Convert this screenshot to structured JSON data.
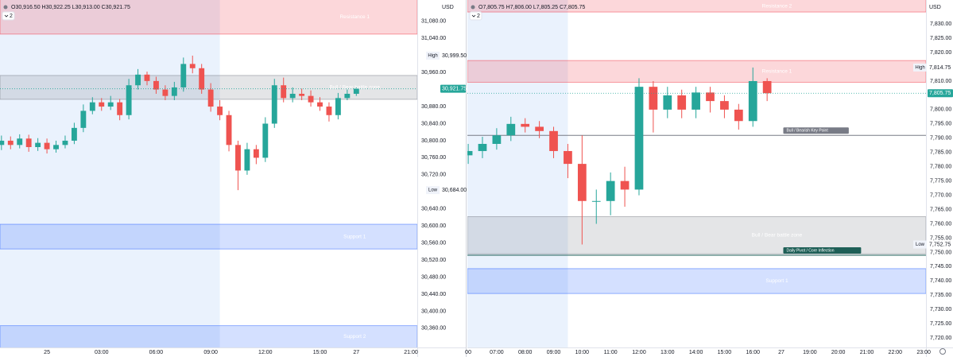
{
  "chart_data": [
    {
      "type": "candlestick",
      "header": "O30,916.50 H30,922.25 L30,913.00 C30,921.75",
      "interval_menu": "2",
      "currency": "USD",
      "up_color": "#26a69a",
      "down_color": "#ef5350",
      "shade_color": "#eaf2fd",
      "x": [
        -2.5,
        -2,
        -1.5,
        -1,
        -0.5,
        0,
        0.5,
        1,
        1.5,
        2,
        2.5,
        3,
        3.5,
        4,
        4.5,
        5,
        5.5,
        6,
        6.5,
        7,
        7.5,
        8,
        8.5,
        9,
        9.5,
        10,
        10.5,
        11,
        11.5,
        12,
        12.5,
        13,
        13.5,
        14,
        14.5,
        15,
        15.5,
        16,
        16.5,
        17
      ],
      "open": [
        30790,
        30800,
        30790,
        30805,
        30785,
        30795,
        30780,
        30790,
        30800,
        30830,
        30870,
        30890,
        30880,
        30890,
        30860,
        30930,
        30955,
        30940,
        30920,
        30905,
        30925,
        30980,
        30970,
        30920,
        30880,
        30860,
        30790,
        30730,
        30780,
        30760,
        30840,
        30930,
        30900,
        30910,
        30905,
        30890,
        30880,
        30860,
        30900,
        30910
      ],
      "high": [
        30812,
        30810,
        30815,
        30814,
        30806,
        30805,
        30800,
        30812,
        30842,
        30885,
        30902,
        30900,
        30905,
        30898,
        30945,
        30968,
        30962,
        30950,
        30930,
        30938,
        30995,
        30999.5,
        30980,
        30935,
        30895,
        30870,
        30800,
        30795,
        30790,
        30855,
        30945,
        30948,
        30925,
        30922,
        30918,
        30902,
        30890,
        30912,
        30920,
        30925
      ],
      "low": [
        30778,
        30780,
        30782,
        30774,
        30776,
        30770,
        30772,
        30782,
        30792,
        30820,
        30862,
        30870,
        30872,
        30848,
        30850,
        30920,
        30930,
        30910,
        30895,
        30895,
        30915,
        30958,
        30910,
        30868,
        30848,
        30775,
        30684,
        30720,
        30745,
        30750,
        30830,
        30890,
        30890,
        30895,
        30880,
        30870,
        30845,
        30850,
        30895,
        30905
      ],
      "close": [
        30800,
        30790,
        30805,
        30785,
        30795,
        30780,
        30790,
        30800,
        30830,
        30870,
        30890,
        30880,
        30890,
        30860,
        30930,
        30955,
        30940,
        30920,
        30905,
        30925,
        30980,
        30970,
        30920,
        30880,
        30860,
        30790,
        30730,
        30780,
        30760,
        30840,
        30930,
        30900,
        30910,
        30905,
        30890,
        30880,
        30860,
        30900,
        30910,
        30922
      ],
      "xlim": [
        -2.58,
        20.35
      ],
      "xticks": [
        {
          "value": 0,
          "label": "25"
        },
        {
          "value": 3,
          "label": "03:00"
        },
        {
          "value": 6,
          "label": "06:00"
        },
        {
          "value": 9,
          "label": "09:00"
        },
        {
          "value": 12,
          "label": "12:00"
        },
        {
          "value": 15,
          "label": "15:00"
        },
        {
          "value": 17,
          "label": "27"
        },
        {
          "value": 20,
          "label": "21:00"
        }
      ],
      "ylim": [
        30315,
        31130
      ],
      "yticks": [
        {
          "value": 30360,
          "label": "30,360.00"
        },
        {
          "value": 30400,
          "label": "30,400.00"
        },
        {
          "value": 30440,
          "label": "30,440.00"
        },
        {
          "value": 30480,
          "label": "30,480.00"
        },
        {
          "value": 30520,
          "label": "30,520.00"
        },
        {
          "value": 30560,
          "label": "30,560.00"
        },
        {
          "value": 30600,
          "label": "30,600.00"
        },
        {
          "value": 30640,
          "label": "30,640.00"
        },
        {
          "value": 30720,
          "label": "30,720.00"
        },
        {
          "value": 30760,
          "label": "30,760.00"
        },
        {
          "value": 30800,
          "label": "30,800.00"
        },
        {
          "value": 30840,
          "label": "30,840.00"
        },
        {
          "value": 30880,
          "label": "30,880.00"
        },
        {
          "value": 30960,
          "label": "30,960.00"
        },
        {
          "value": 31040,
          "label": "31,040.00"
        },
        {
          "value": 31080,
          "label": "31,080.00"
        }
      ],
      "session_shade_end": 9.5,
      "zones": [
        {
          "label": "Resistance 1",
          "from": 31050,
          "to": 31140,
          "color": "#f23645"
        },
        {
          "label": "Bull / Bear battle zone",
          "from": 30897,
          "to": 30953,
          "color": "#787b86"
        },
        {
          "label": "Support 1",
          "from": 30546,
          "to": 30604,
          "color": "#2962ff"
        },
        {
          "label": "Support 2",
          "from": 30300,
          "to": 30366,
          "color": "#2962ff"
        }
      ],
      "levels": [],
      "markers": [
        {
          "label": "High",
          "value": {
            "value": 30999.5,
            "label": "30,999.50"
          }
        },
        {
          "label": "Low",
          "value": {
            "value": 30684,
            "label": "30,684.00"
          }
        }
      ],
      "last": {
        "value": 30921.75,
        "label": "30,921.75"
      }
    },
    {
      "type": "candlestick",
      "header": "O7,805.75 H7,806.00 L7,805.25 C7,805.75",
      "interval_menu": "2",
      "currency": "USD",
      "up_color": "#26a69a",
      "down_color": "#ef5350",
      "shade_color": "#eaf2fd",
      "x": [
        6,
        6.5,
        7,
        7.5,
        8,
        8.5,
        9,
        9.5,
        10,
        10.5,
        11,
        11.5,
        12,
        12.5,
        13,
        13.5,
        14,
        14.5,
        15,
        15.5,
        16,
        16.5
      ],
      "open": [
        7784,
        7785.5,
        7788,
        7791,
        7795,
        7794,
        7792.5,
        7785.5,
        7781,
        7768,
        7768,
        7775,
        7772,
        7808,
        7800,
        7805,
        7800,
        7806,
        7803,
        7800,
        7796,
        7810
      ],
      "high": [
        7788,
        7790.5,
        7793.5,
        7797.5,
        7797,
        7796,
        7794,
        7788,
        7791,
        7772,
        7778,
        7780,
        7811,
        7810,
        7808,
        7807,
        7808,
        7808,
        7805,
        7802,
        7814.75,
        7811
      ],
      "low": [
        7781,
        7783,
        7786,
        7789,
        7792,
        7790,
        7783,
        7776,
        7752.75,
        7760,
        7763,
        7766,
        7770,
        7792,
        7797,
        7797,
        7797,
        7799,
        7797,
        7793,
        7794,
        7803
      ],
      "close": [
        7785.5,
        7788,
        7791,
        7795,
        7794,
        7792.5,
        7785.5,
        7781,
        7768,
        7768,
        7775,
        7772,
        7808,
        7800,
        7805,
        7800,
        7806,
        7803,
        7800,
        7796,
        7810,
        7805.75
      ],
      "xlim": [
        5.97,
        22.08
      ],
      "xticks": [
        {
          "value": 6,
          "label": "00"
        },
        {
          "value": 7,
          "label": "07:00"
        },
        {
          "value": 8,
          "label": "08:00"
        },
        {
          "value": 9,
          "label": "09:00"
        },
        {
          "value": 10,
          "label": "10:00"
        },
        {
          "value": 11,
          "label": "11:00"
        },
        {
          "value": 12,
          "label": "12:00"
        },
        {
          "value": 13,
          "label": "13:00"
        },
        {
          "value": 14,
          "label": "14:00"
        },
        {
          "value": 15,
          "label": "15:00"
        },
        {
          "value": 16,
          "label": "16:00"
        },
        {
          "value": 17,
          "label": "27"
        },
        {
          "value": 18,
          "label": "19:00"
        },
        {
          "value": 19,
          "label": "20:00"
        },
        {
          "value": 20,
          "label": "21:00"
        },
        {
          "value": 21,
          "label": "22:00"
        },
        {
          "value": 22,
          "label": "23:00"
        }
      ],
      "ylim": [
        7716.7,
        7838.4
      ],
      "yticks": [
        {
          "value": 7720,
          "label": "7,720.00"
        },
        {
          "value": 7725,
          "label": "7,725.00"
        },
        {
          "value": 7730,
          "label": "7,730.00"
        },
        {
          "value": 7735,
          "label": "7,735.00"
        },
        {
          "value": 7740,
          "label": "7,740.00"
        },
        {
          "value": 7745,
          "label": "7,745.00"
        },
        {
          "value": 7750,
          "label": "7,750.00"
        },
        {
          "value": 7755,
          "label": "7,755.00"
        },
        {
          "value": 7760,
          "label": "7,760.00"
        },
        {
          "value": 7765,
          "label": "7,765.00"
        },
        {
          "value": 7770,
          "label": "7,770.00"
        },
        {
          "value": 7775,
          "label": "7,775.00"
        },
        {
          "value": 7780,
          "label": "7,780.00"
        },
        {
          "value": 7785,
          "label": "7,785.00"
        },
        {
          "value": 7790,
          "label": "7,790.00"
        },
        {
          "value": 7795,
          "label": "7,795.00"
        },
        {
          "value": 7800,
          "label": "7,800.00"
        },
        {
          "value": 7810,
          "label": "7,810.00"
        },
        {
          "value": 7820,
          "label": "7,820.00"
        },
        {
          "value": 7825,
          "label": "7,825.00"
        },
        {
          "value": 7830,
          "label": "7,830.00"
        }
      ],
      "session_shade_end": 9.5,
      "zones": [
        {
          "label": "Resistance 2",
          "from": 7834.2,
          "to": 7840,
          "color": "#f23645"
        },
        {
          "label": "Resistance 1",
          "from": 7809.6,
          "to": 7817.2,
          "color": "#f23645"
        },
        {
          "label": "Bull / Bear battle zone",
          "from": 7749.5,
          "to": 7762.5,
          "color": "#787b86"
        },
        {
          "label": "Support 1",
          "from": 7735.6,
          "to": 7744.3,
          "color": "#2962ff"
        }
      ],
      "levels": [
        {
          "label": "Bull / Bearish Key Point",
          "value": 7791,
          "color": "#787b86"
        },
        {
          "label": "Daily Pivot / Core Inflection",
          "value": 7749,
          "color": "#1e5f57"
        }
      ],
      "markers": [
        {
          "label": "High",
          "value": {
            "value": 7814.75,
            "label": "7,814.75"
          }
        },
        {
          "label": "Low",
          "value": {
            "value": 7752.75,
            "label": "7,752.75"
          }
        }
      ],
      "last": {
        "value": 7805.75,
        "label": "7,805.75"
      }
    }
  ]
}
